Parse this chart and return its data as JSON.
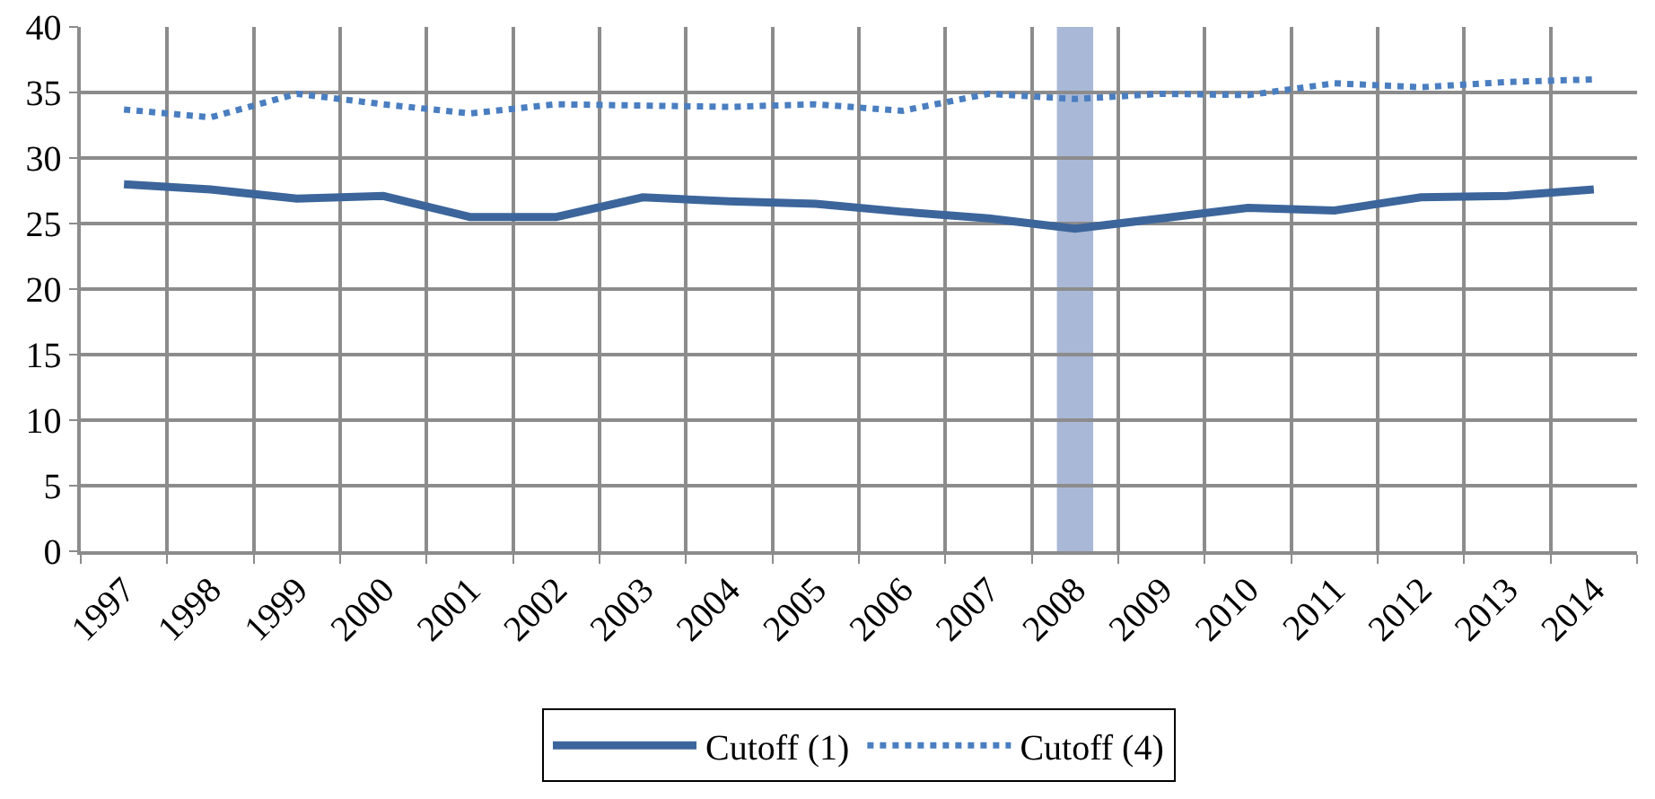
{
  "chart_data": {
    "type": "line",
    "categories": [
      "1997",
      "1998",
      "1999",
      "2000",
      "2001",
      "2002",
      "2003",
      "2004",
      "2005",
      "2006",
      "2007",
      "2008",
      "2009",
      "2010",
      "2011",
      "2012",
      "2013",
      "2014"
    ],
    "series": [
      {
        "name": "Cutoff (1)",
        "color": "#3c659b",
        "line_style": "solid",
        "values": [
          28.0,
          27.6,
          26.9,
          27.1,
          25.5,
          25.5,
          27.0,
          26.7,
          26.5,
          25.9,
          25.4,
          24.6,
          25.4,
          26.2,
          26.0,
          27.0,
          27.1,
          27.6
        ]
      },
      {
        "name": "Cutoff (4)",
        "color": "#4a7ec0",
        "line_style": "dotted",
        "values": [
          33.7,
          33.1,
          34.9,
          34.1,
          33.4,
          34.1,
          34.0,
          33.9,
          34.1,
          33.6,
          34.9,
          34.5,
          34.9,
          34.8,
          35.7,
          35.4,
          35.8,
          36.0
        ]
      }
    ],
    "bands": [
      {
        "axis": "x",
        "from": "2008",
        "to": "2008",
        "color": "#a9b8d6"
      }
    ],
    "ylim": [
      0,
      40
    ],
    "yticks": [
      0,
      5,
      10,
      15,
      20,
      25,
      30,
      35,
      40
    ],
    "grid": true,
    "legend": "bottom",
    "marker": "none"
  }
}
